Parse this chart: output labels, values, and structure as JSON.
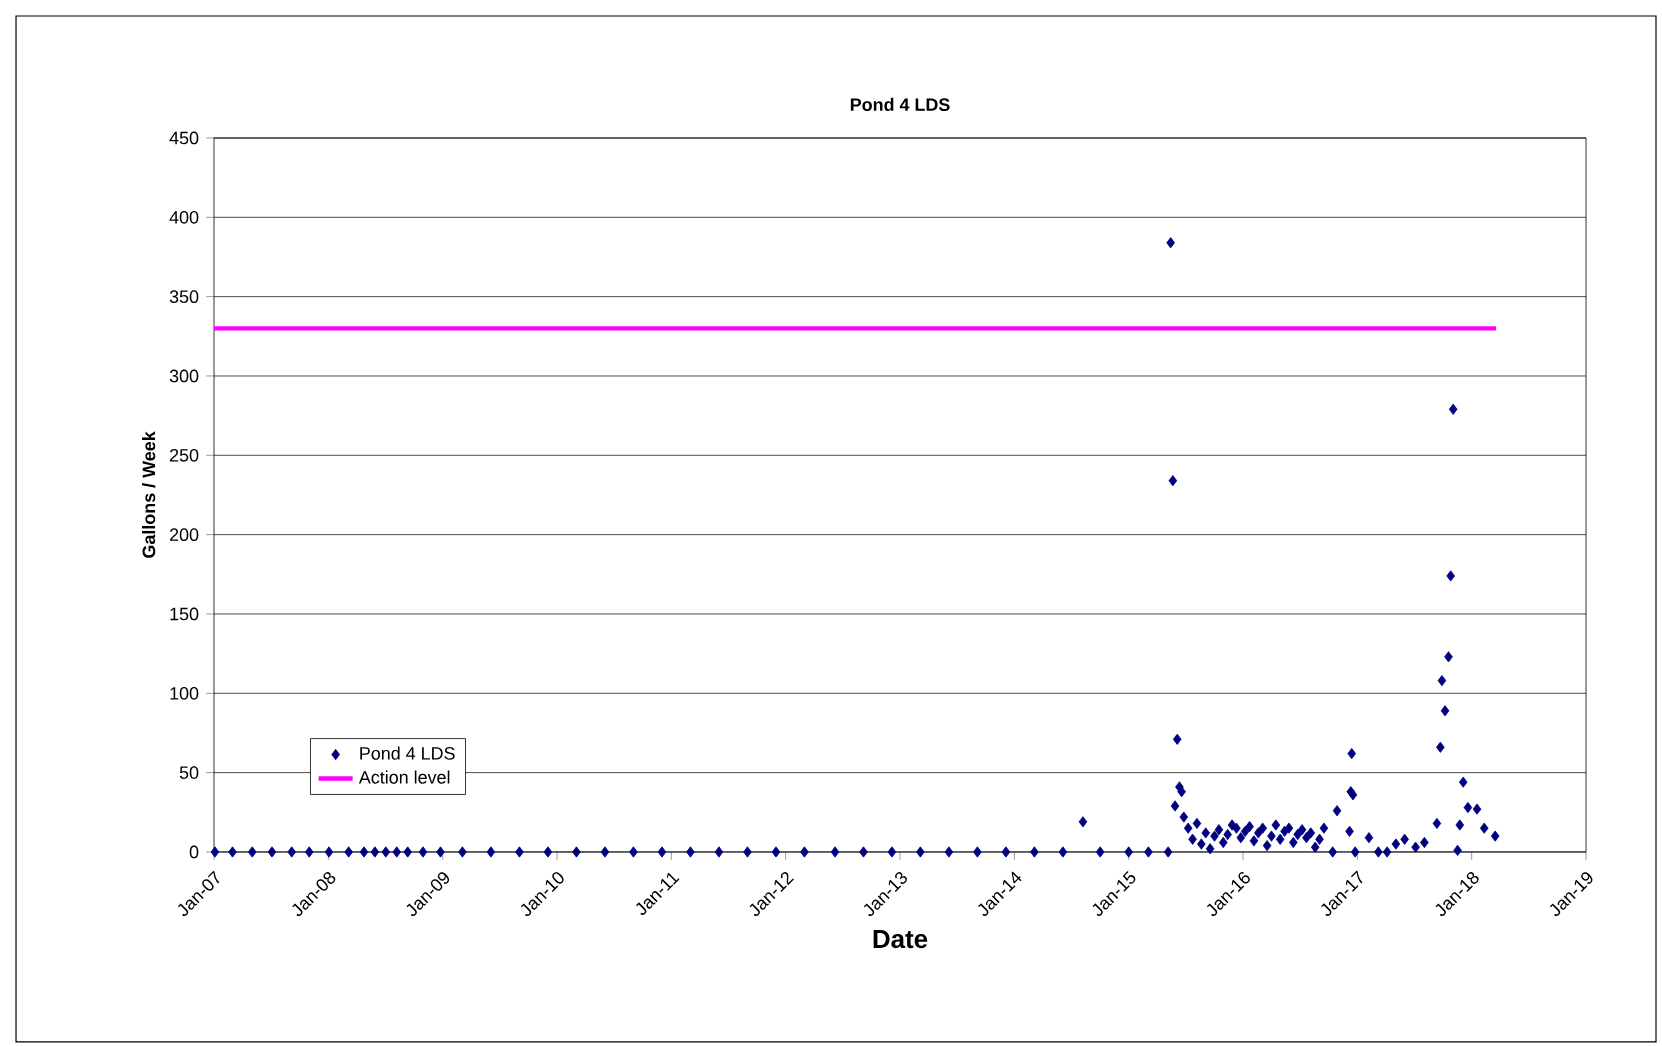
{
  "chart_data": {
    "type": "scatter",
    "title": "Pond 4 LDS",
    "xlabel": "Date",
    "ylabel": "Gallons / Week",
    "ylim": [
      0,
      450
    ],
    "yticks": [
      0,
      50,
      100,
      150,
      200,
      250,
      300,
      350,
      400,
      450
    ],
    "xlim": [
      "2007-01-01",
      "2019-01-01"
    ],
    "xticks": [
      {
        "value": "2007-01-01",
        "label": "Jan-07"
      },
      {
        "value": "2008-01-01",
        "label": "Jan-08"
      },
      {
        "value": "2009-01-01",
        "label": "Jan-09"
      },
      {
        "value": "2010-01-01",
        "label": "Jan-10"
      },
      {
        "value": "2011-01-01",
        "label": "Jan-11"
      },
      {
        "value": "2012-01-01",
        "label": "Jan-12"
      },
      {
        "value": "2013-01-01",
        "label": "Jan-13"
      },
      {
        "value": "2014-01-01",
        "label": "Jan-14"
      },
      {
        "value": "2015-01-01",
        "label": "Jan-15"
      },
      {
        "value": "2016-01-01",
        "label": "Jan-16"
      },
      {
        "value": "2017-01-01",
        "label": "Jan-17"
      },
      {
        "value": "2018-01-01",
        "label": "Jan-18"
      },
      {
        "value": "2019-01-01",
        "label": "Jan-19"
      }
    ],
    "grid": "y",
    "legend": "bottom left",
    "series": [
      {
        "name": "Pond 4 LDS",
        "marker": "diamond",
        "color": "#000080",
        "x": [
          "2007-01-04",
          "2007-03-01",
          "2007-05-03",
          "2007-07-05",
          "2007-09-06",
          "2007-11-01",
          "2008-01-03",
          "2008-03-06",
          "2008-04-24",
          "2008-05-29",
          "2008-07-03",
          "2008-08-07",
          "2008-09-11",
          "2008-10-30",
          "2008-12-25",
          "2009-03-05",
          "2009-06-04",
          "2009-09-03",
          "2009-12-03",
          "2010-03-04",
          "2010-06-03",
          "2010-09-02",
          "2010-12-02",
          "2011-03-03",
          "2011-06-02",
          "2011-09-01",
          "2011-12-01",
          "2012-03-01",
          "2012-06-07",
          "2012-09-06",
          "2012-12-06",
          "2013-03-07",
          "2013-06-06",
          "2013-09-05",
          "2013-12-05",
          "2014-03-06",
          "2014-06-05",
          "2014-08-08",
          "2014-10-02",
          "2015-01-01",
          "2015-03-05",
          "2015-05-07",
          "2015-05-15",
          "2015-05-22",
          "2015-05-29",
          "2015-06-05",
          "2015-06-12",
          "2015-06-19",
          "2015-06-26",
          "2015-07-10",
          "2015-07-24",
          "2015-08-07",
          "2015-08-21",
          "2015-09-04",
          "2015-09-18",
          "2015-10-02",
          "2015-10-16",
          "2015-10-30",
          "2015-11-13",
          "2015-11-27",
          "2015-12-11",
          "2015-12-25",
          "2016-01-08",
          "2016-01-22",
          "2016-02-05",
          "2016-02-19",
          "2016-03-04",
          "2016-03-18",
          "2016-04-01",
          "2016-04-15",
          "2016-04-29",
          "2016-05-13",
          "2016-05-27",
          "2016-06-10",
          "2016-06-24",
          "2016-07-08",
          "2016-07-22",
          "2016-08-05",
          "2016-08-19",
          "2016-09-02",
          "2016-09-16",
          "2016-10-14",
          "2016-10-28",
          "2016-12-07",
          "2016-12-11",
          "2016-12-14",
          "2016-12-18",
          "2016-12-25",
          "2017-02-07",
          "2017-03-09",
          "2017-04-06",
          "2017-05-04",
          "2017-06-01",
          "2017-07-06",
          "2017-08-03",
          "2017-09-12",
          "2017-09-23",
          "2017-09-28",
          "2017-10-08",
          "2017-10-19",
          "2017-10-26",
          "2017-11-03",
          "2017-11-17",
          "2017-11-24",
          "2017-12-05",
          "2017-12-20",
          "2018-01-18",
          "2018-02-10",
          "2018-03-17"
        ],
        "values": [
          0,
          0,
          0,
          0,
          0,
          0,
          0,
          0,
          0,
          0,
          0,
          0,
          0,
          0,
          0,
          0,
          0,
          0,
          0,
          0,
          0,
          0,
          0,
          0,
          0,
          0,
          0,
          0,
          0,
          0,
          0,
          0,
          0,
          0,
          0,
          0,
          0,
          19,
          0,
          0,
          0,
          0,
          384,
          234,
          29,
          71,
          41,
          38,
          22,
          15,
          8,
          18,
          5,
          12,
          2,
          10,
          14,
          6,
          11,
          17,
          15,
          9,
          13,
          16,
          7,
          12,
          15,
          4,
          10,
          17,
          8,
          13,
          15,
          6,
          11,
          14,
          9,
          12,
          3,
          8,
          15,
          0,
          26,
          13,
          38,
          62,
          36,
          0,
          9,
          0,
          0,
          5,
          8,
          3,
          6,
          18,
          66,
          108,
          89,
          123,
          174,
          279,
          1,
          17,
          44,
          28,
          27,
          15,
          10
        ]
      },
      {
        "name": "Action level",
        "type": "line",
        "marker": "none",
        "color": "#ff00ff",
        "x": [
          "2007-01-01",
          "2018-03-20"
        ],
        "values": [
          330,
          330
        ]
      }
    ]
  }
}
